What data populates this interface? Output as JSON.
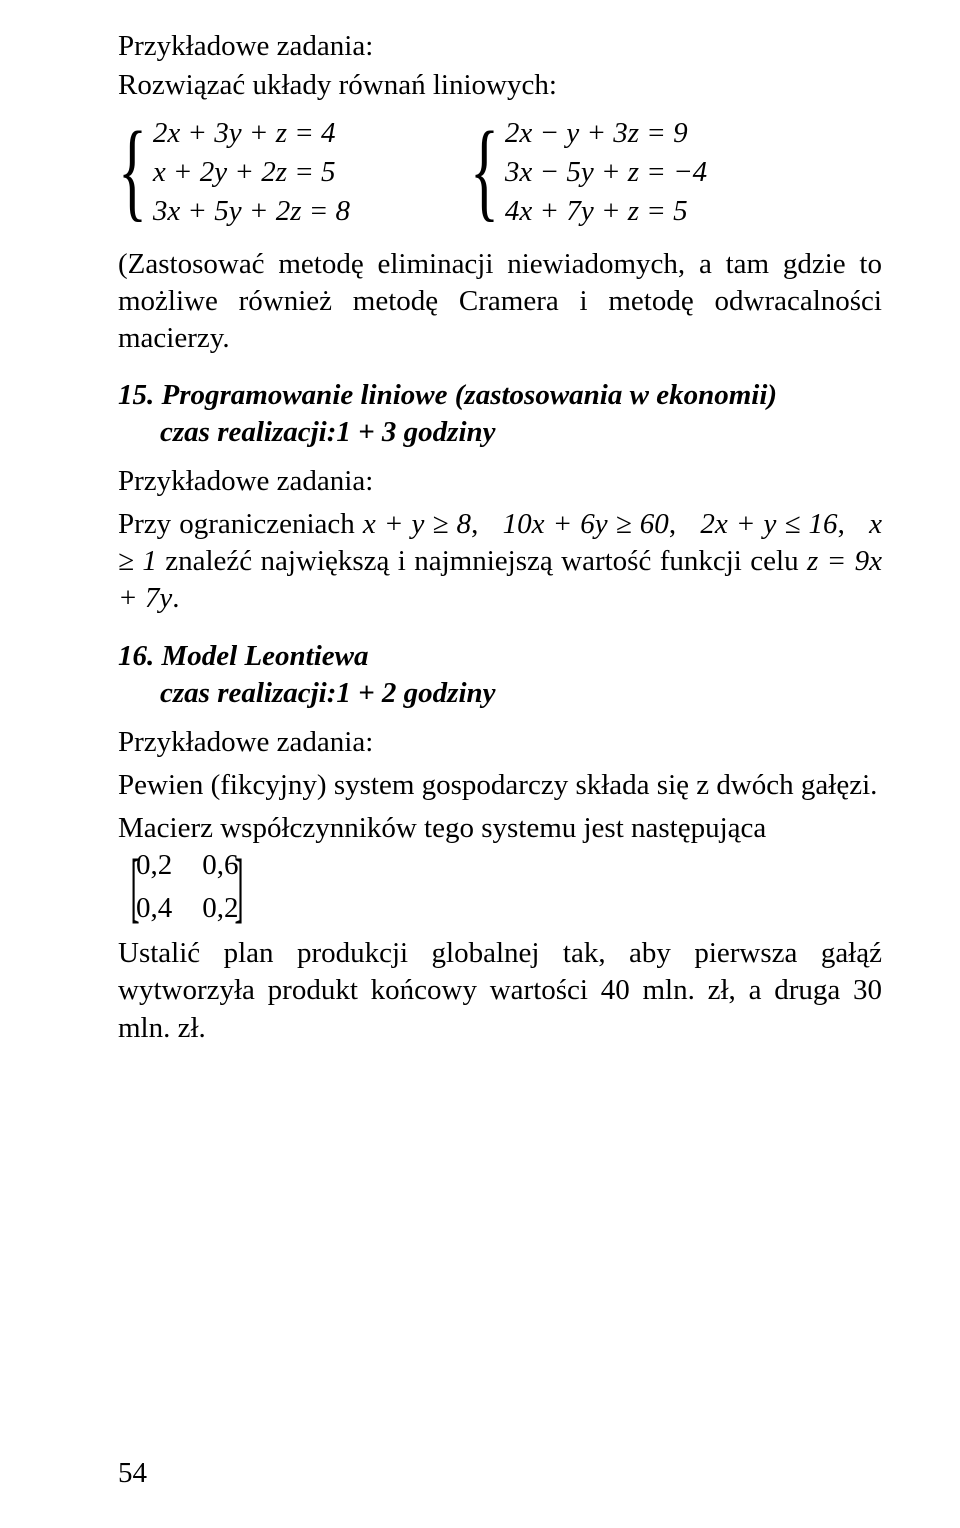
{
  "colors": {
    "text": "#000000",
    "background": "#ffffff"
  },
  "fonts": {
    "body_family": "Times New Roman",
    "body_size_pt": 22,
    "italic_weight": "bold"
  },
  "header1": "Przykładowe zadania:",
  "header2": "Rozwiązać układy równań liniowych:",
  "sys1": {
    "l1": "2x + 3y + z = 4",
    "l2": "x + 2y + 2z = 5",
    "l3": "3x + 5y + 2z = 8"
  },
  "sys2": {
    "l1": "2x − y + 3z = 9",
    "l2": "3x − 5y + z = −4",
    "l3": "4x + 7y + z = 5"
  },
  "para1": "(Zastosować metodę eliminacji niewiadomych, a tam gdzie to możliwe również metodę Cramera i metodę odwracalności macierzy.",
  "sec15_num": "15. ",
  "sec15_title": "Programowanie liniowe (zastosowania w ekonomii)",
  "sec15_sub": "czas realizacji:1 + 3 godziny",
  "pz2": "Przykładowe zadania:",
  "constraints_lead": "Przy ograniczeniach ",
  "c1": "x + y ≥ 8",
  "c2": "10x + 6y ≥ 60",
  "c3": "2x + y ≤ 16",
  "c4": "x ≥ 1",
  "constraints_tail": " znaleźć największą i najmniejszą wartość funkcji celu ",
  "objective": "z = 9x + 7y",
  "period": ".",
  "sec16_num": "16. ",
  "sec16_title": "Model Leontiewa",
  "sec16_sub": "czas realizacji:1 + 2 godziny",
  "pz3": "Przykładowe zadania:",
  "leontief1": "Pewien (fikcyjny) system gospodarczy składa się z dwóch gałęzi.",
  "leontief2_lead": "Macierz współczynników tego systemu jest następująca ",
  "matrix": {
    "rows": [
      [
        "0,2",
        "0,6"
      ],
      [
        "0,4",
        "0,2"
      ]
    ]
  },
  "leontief3": "Ustalić plan produkcji globalnej tak, aby pierwsza gałąź wytworzyła produkt końcowy wartości 40 mln. zł, a druga 30 mln. zł.",
  "pagenum": "54"
}
